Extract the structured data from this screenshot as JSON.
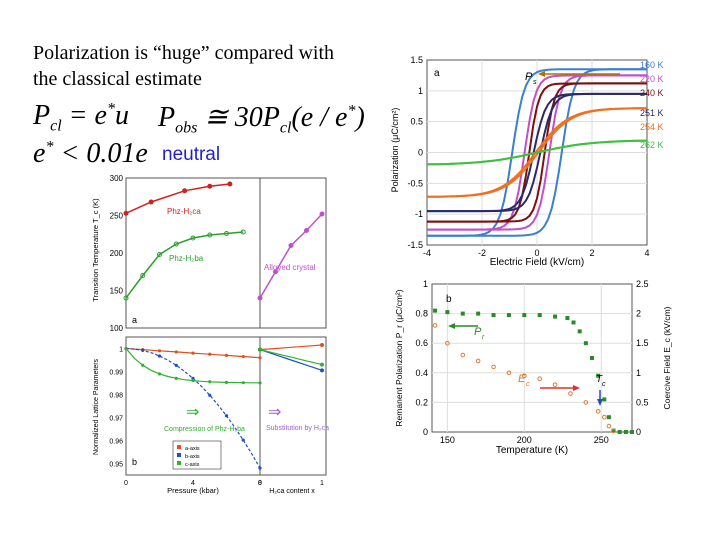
{
  "heading": {
    "line1": "Polarization is “huge” compared with",
    "line2": "the classical estimate",
    "neutral": "neutral"
  },
  "colors": {
    "neutral_text": "#1f1fd0"
  },
  "chart_data": [
    {
      "type": "line",
      "panel": "a",
      "xlabel": "Electric Field (kV/cm)",
      "ylabel": "Polarization (μC/cm²)",
      "xlim": [
        -4,
        4
      ],
      "ylim": [
        -1.5,
        1.5
      ],
      "xticks": [
        "-4",
        "-2",
        "0",
        "2",
        "4"
      ],
      "yticks": [
        "1.5",
        "1",
        "0.5",
        "0",
        "-0.5",
        "-1",
        "-1.5"
      ],
      "pointer_label": "P",
      "pointer_sub": "s",
      "series": [
        {
          "name": "160 K",
          "color": "#3a7fd0",
          "Ps": 1.35,
          "Ec": 0.9,
          "w": 0.45
        },
        {
          "name": "220 K",
          "color": "#c050c8",
          "Ps": 1.25,
          "Ec": 0.45,
          "w": 0.4
        },
        {
          "name": "240 K",
          "color": "#7a1010",
          "Ps": 1.12,
          "Ec": 0.28,
          "w": 0.35
        },
        {
          "name": "251 K",
          "color": "#2a2a6a",
          "Ps": 0.95,
          "Ec": 0.12,
          "w": 0.45
        },
        {
          "name": "254 K",
          "color": "#f07020",
          "Ps": 0.72,
          "Ec": 0.05,
          "w": 1.2
        },
        {
          "name": "262 K",
          "color": "#40c040",
          "Ps": 0.2,
          "Ec": 0.0,
          "w": 2.0
        }
      ]
    },
    {
      "type": "scatter",
      "panel": "b",
      "xlabel": "Temperature (K)",
      "ylabel_left": "Remanent Polarization P_r (μC/cm²)",
      "ylabel_right": "Coercive Field E_c (kV/cm)",
      "xlim": [
        140,
        270
      ],
      "ylim_left": [
        0,
        1
      ],
      "ylim_right": [
        0,
        2.5
      ],
      "xticks": [
        "150",
        "200",
        "250"
      ],
      "yticks_left": [
        "1",
        "0.8",
        "0.6",
        "0.4",
        "0.2",
        "0"
      ],
      "yticks_right": [
        "2.5",
        "2",
        "1.5",
        "1",
        "0.5",
        "0"
      ],
      "labels": {
        "pr": "P",
        "pr_sub": "r",
        "ec": "E",
        "ec_sub": "c",
        "tc": "T",
        "tc_sub": "c"
      },
      "series": [
        {
          "name": "P_r",
          "color": "#2a8a2a",
          "x": [
            142,
            150,
            160,
            170,
            180,
            190,
            200,
            210,
            220,
            228,
            232,
            236,
            240,
            244,
            248,
            252,
            255,
            258,
            262,
            266,
            270
          ],
          "y": [
            0.82,
            0.81,
            0.8,
            0.8,
            0.79,
            0.79,
            0.79,
            0.79,
            0.78,
            0.77,
            0.74,
            0.68,
            0.6,
            0.5,
            0.38,
            0.22,
            0.1,
            0.01,
            0.0,
            0.0,
            0.0
          ]
        },
        {
          "name": "E_c",
          "color": "#e07a30",
          "x": [
            142,
            150,
            160,
            170,
            180,
            190,
            200,
            210,
            220,
            230,
            240,
            248,
            252,
            255,
            258
          ],
          "y": [
            1.8,
            1.5,
            1.3,
            1.2,
            1.1,
            1.0,
            0.95,
            0.9,
            0.8,
            0.65,
            0.5,
            0.35,
            0.25,
            0.1,
            0.02
          ]
        }
      ]
    },
    {
      "type": "line",
      "panel": "a (top-left)",
      "ylabel": "Transition Temperature T_c (K)",
      "ylim": [
        100,
        300
      ],
      "yticks": [
        "300",
        "250",
        "200",
        "150",
        "100"
      ],
      "annotations": [
        "Phz-H₂ca",
        "Phz-H₂ba",
        "Alloyed crystal"
      ],
      "series": [
        {
          "name": "Phz-H2ca",
          "color": "#d02020",
          "x": [
            0,
            1.5,
            3.5,
            5,
            6.2
          ],
          "y": [
            253,
            268,
            283,
            289,
            292
          ]
        },
        {
          "name": "Phz-H2ba",
          "color": "#2aa02a",
          "x": [
            0,
            1,
            2,
            3,
            4,
            5,
            6,
            7
          ],
          "y": [
            140,
            170,
            198,
            212,
            220,
            224,
            226,
            228
          ]
        },
        {
          "name": "Alloyed crystal",
          "color": "#c050c8",
          "x": [
            0,
            0.25,
            0.5,
            0.75,
            1
          ],
          "y": [
            140,
            175,
            210,
            230,
            252
          ]
        }
      ]
    },
    {
      "type": "line",
      "panel": "b (bottom-left)",
      "xlabel_left": "Pressure (kbar)",
      "xlabel_right": "H₂ca content  x",
      "ylabel": "Normalized Lattice Parameters",
      "ylim": [
        0.945,
        1.005
      ],
      "yticks": [
        "1",
        "0.99",
        "0.98",
        "0.97",
        "0.96",
        "0.95"
      ],
      "xticks_left": [
        "0",
        "4",
        "8"
      ],
      "xticks_right": [
        "0",
        "1"
      ],
      "text": [
        "Compression of Phz-H₂ba",
        "Substitution by H₂ca"
      ],
      "legend": [
        "a-axis",
        "b-axis",
        "c-axis"
      ],
      "series": [
        {
          "name": "a-axis",
          "color": "#e05020"
        },
        {
          "name": "b-axis",
          "color": "#2050c0"
        },
        {
          "name": "c-axis",
          "color": "#30b030"
        }
      ]
    }
  ]
}
